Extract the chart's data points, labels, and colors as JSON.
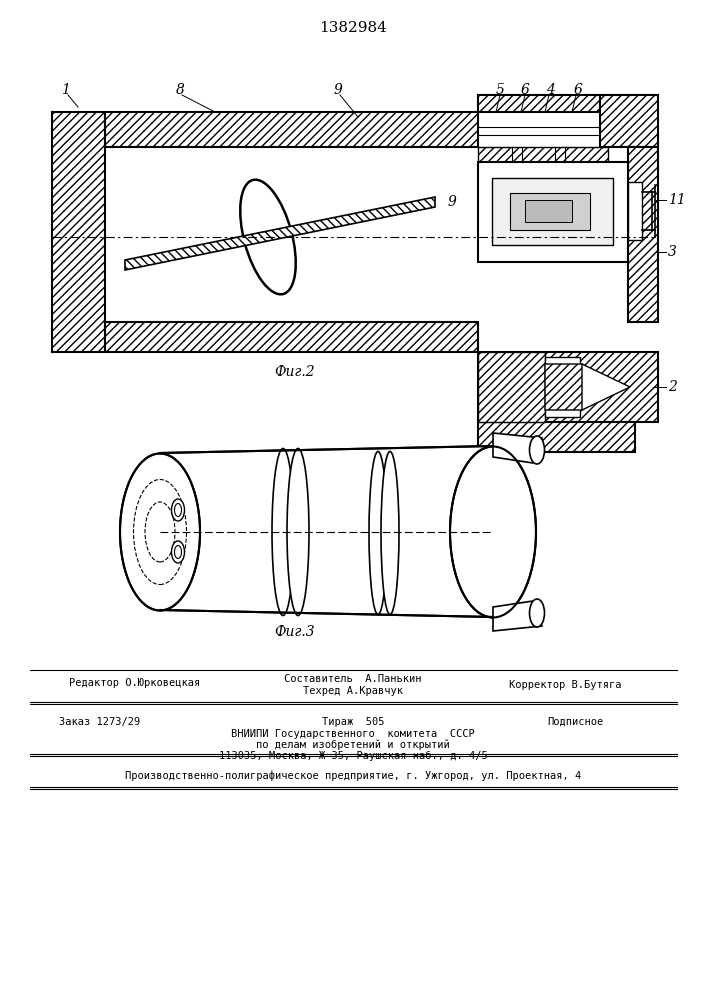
{
  "patent_number": "1382984",
  "fig2_label": "Фиг.2",
  "fig3_label": "Фиг.3",
  "background_color": "#ffffff",
  "line_color": "#000000",
  "editor_line": "Редактор О.Юрковецкая",
  "composer_line": "Составитель  А.Панькин",
  "techred_line": "Техред А.Кравчук",
  "corrector_line": "Корректор В.Бутяга",
  "order_line": "Заказ 1273/29",
  "tirazh_line": "Тираж  505",
  "podpisnoe_line": "Подписное",
  "vnipi_line1": "ВНИИПИ Государственного  комитета  СССР",
  "vnipi_line2": "по делам изобретений и открытий",
  "vnipi_line3": "113035, Москва, Ж-35, Раушская наб., д. 4/5",
  "production_line": "Производственно-полиграфическое предприятие, г. Ужгород, ул. Проектная, 4"
}
